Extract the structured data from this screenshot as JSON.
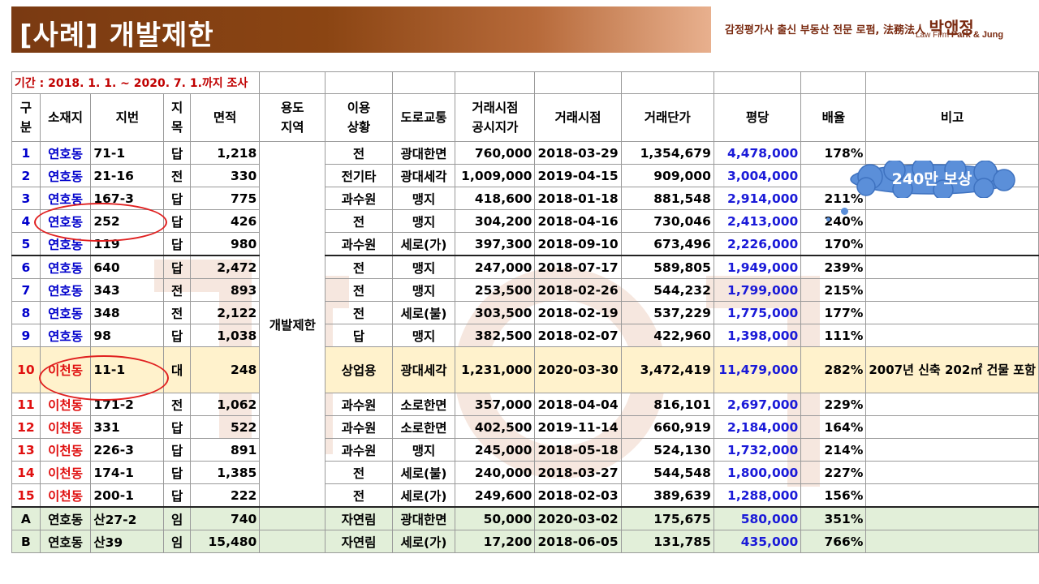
{
  "title": "[사례] 개발제한",
  "brand": {
    "tagline": "감정평가사 출신 부동산 전문 로펌, 法務法人",
    "name": "박앤정",
    "sub_prefix": "Law Firm",
    "sub_name": "Park & Jung"
  },
  "table": {
    "period": "기간 : 2018. 1. 1. ~ 2020. 7. 1.까지 조사",
    "headers": [
      "구분",
      "소재지",
      "지번",
      "지목",
      "면적",
      "용도지역",
      "이용상황",
      "도로교통",
      "거래시점공시지가",
      "거래시점",
      "거래단가",
      "평당",
      "배율",
      "비고"
    ],
    "header_display": [
      "구\n분",
      "소재지",
      "지번",
      "지\n목",
      "면적",
      "용도\n지역",
      "이용\n상황",
      "도로교통",
      "거래시점\n공시지가",
      "거래시점",
      "거래단가",
      "평당",
      "배율",
      "비고"
    ],
    "yongdo_merged": "개발제한",
    "rows": [
      {
        "no": "1",
        "loc": "연호동",
        "jibun": "71-1",
        "jimok": "답",
        "area": "1,218",
        "use": "전",
        "road": "광대한면",
        "price": "760,000",
        "date": "2018-03-29",
        "unit": "1,354,679",
        "pyeong": "4,478,000",
        "ratio": "178%",
        "note": ""
      },
      {
        "no": "2",
        "loc": "연호동",
        "jibun": "21-16",
        "jimok": "전",
        "area": "330",
        "use": "전기타",
        "road": "광대세각",
        "price": "1,009,000",
        "date": "2019-04-15",
        "unit": "909,000",
        "pyeong": "3,004,000",
        "ratio": "",
        "note": ""
      },
      {
        "no": "3",
        "loc": "연호동",
        "jibun": "167-3",
        "jimok": "답",
        "area": "775",
        "use": "과수원",
        "road": "맹지",
        "price": "418,600",
        "date": "2018-01-18",
        "unit": "881,548",
        "pyeong": "2,914,000",
        "ratio": "211%",
        "note": ""
      },
      {
        "no": "4",
        "loc": "연호동",
        "jibun": "252",
        "jimok": "답",
        "area": "426",
        "use": "전",
        "road": "맹지",
        "price": "304,200",
        "date": "2018-04-16",
        "unit": "730,046",
        "pyeong": "2,413,000",
        "ratio": "240%",
        "note": ""
      },
      {
        "no": "5",
        "loc": "연호동",
        "jibun": "119",
        "jimok": "답",
        "area": "980",
        "use": "과수원",
        "road": "세로(가)",
        "price": "397,300",
        "date": "2018-09-10",
        "unit": "673,496",
        "pyeong": "2,226,000",
        "ratio": "170%",
        "note": ""
      },
      {
        "no": "6",
        "loc": "연호동",
        "jibun": "640",
        "jimok": "답",
        "area": "2,472",
        "use": "전",
        "road": "맹지",
        "price": "247,000",
        "date": "2018-07-17",
        "unit": "589,805",
        "pyeong": "1,949,000",
        "ratio": "239%",
        "note": ""
      },
      {
        "no": "7",
        "loc": "연호동",
        "jibun": "343",
        "jimok": "전",
        "area": "893",
        "use": "전",
        "road": "맹지",
        "price": "253,500",
        "date": "2018-02-26",
        "unit": "544,232",
        "pyeong": "1,799,000",
        "ratio": "215%",
        "note": ""
      },
      {
        "no": "8",
        "loc": "연호동",
        "jibun": "348",
        "jimok": "전",
        "area": "2,122",
        "use": "전",
        "road": "세로(불)",
        "price": "303,500",
        "date": "2018-02-19",
        "unit": "537,229",
        "pyeong": "1,775,000",
        "ratio": "177%",
        "note": ""
      },
      {
        "no": "9",
        "loc": "연호동",
        "jibun": "98",
        "jimok": "답",
        "area": "1,038",
        "use": "답",
        "road": "맹지",
        "price": "382,500",
        "date": "2018-02-07",
        "unit": "422,960",
        "pyeong": "1,398,000",
        "ratio": "111%",
        "note": ""
      },
      {
        "no": "10",
        "loc": "이천동",
        "jibun": "11-1",
        "jimok": "대",
        "area": "248",
        "use": "상업용",
        "road": "광대세각",
        "price": "1,231,000",
        "date": "2020-03-30",
        "unit": "3,472,419",
        "pyeong": "11,479,000",
        "ratio": "282%",
        "note": "2007년 신축 202㎡ 건물 포함"
      },
      {
        "no": "11",
        "loc": "이천동",
        "jibun": "171-2",
        "jimok": "전",
        "area": "1,062",
        "use": "과수원",
        "road": "소로한면",
        "price": "357,000",
        "date": "2018-04-04",
        "unit": "816,101",
        "pyeong": "2,697,000",
        "ratio": "229%",
        "note": ""
      },
      {
        "no": "12",
        "loc": "이천동",
        "jibun": "331",
        "jimok": "답",
        "area": "522",
        "use": "과수원",
        "road": "소로한면",
        "price": "402,500",
        "date": "2019-11-14",
        "unit": "660,919",
        "pyeong": "2,184,000",
        "ratio": "164%",
        "note": ""
      },
      {
        "no": "13",
        "loc": "이천동",
        "jibun": "226-3",
        "jimok": "답",
        "area": "891",
        "use": "과수원",
        "road": "맹지",
        "price": "245,000",
        "date": "2018-05-18",
        "unit": "524,130",
        "pyeong": "1,732,000",
        "ratio": "214%",
        "note": ""
      },
      {
        "no": "14",
        "loc": "이천동",
        "jibun": "174-1",
        "jimok": "답",
        "area": "1,385",
        "use": "전",
        "road": "세로(불)",
        "price": "240,000",
        "date": "2018-03-27",
        "unit": "544,548",
        "pyeong": "1,800,000",
        "ratio": "227%",
        "note": ""
      },
      {
        "no": "15",
        "loc": "이천동",
        "jibun": "200-1",
        "jimok": "답",
        "area": "222",
        "use": "전",
        "road": "세로(가)",
        "price": "249,600",
        "date": "2018-02-03",
        "unit": "389,639",
        "pyeong": "1,288,000",
        "ratio": "156%",
        "note": ""
      },
      {
        "no": "A",
        "loc": "연호동",
        "jibun": "산27-2",
        "jimok": "임",
        "area": "740",
        "use": "자연림",
        "road": "광대한면",
        "price": "50,000",
        "date": "2020-03-02",
        "unit": "175,675",
        "pyeong": "580,000",
        "ratio": "351%",
        "note": ""
      },
      {
        "no": "B",
        "loc": "연호동",
        "jibun": "산39",
        "jimok": "임",
        "area": "15,480",
        "use": "자연림",
        "road": "세로(가)",
        "price": "17,200",
        "date": "2018-06-05",
        "unit": "131,785",
        "pyeong": "435,000",
        "ratio": "766%",
        "note": ""
      }
    ]
  },
  "callout": "240만 보상",
  "colors": {
    "title_bar": "#8b4513",
    "period_text": "#c00000",
    "yeonho_text": "#0000cc",
    "icheon_text": "#e01010",
    "pyeong_text": "#1a1ad8",
    "highlight_row": "#fff2cc",
    "special_rows": "#e2efd9",
    "circle": "#e02020",
    "callout": "#5b8fd9"
  }
}
